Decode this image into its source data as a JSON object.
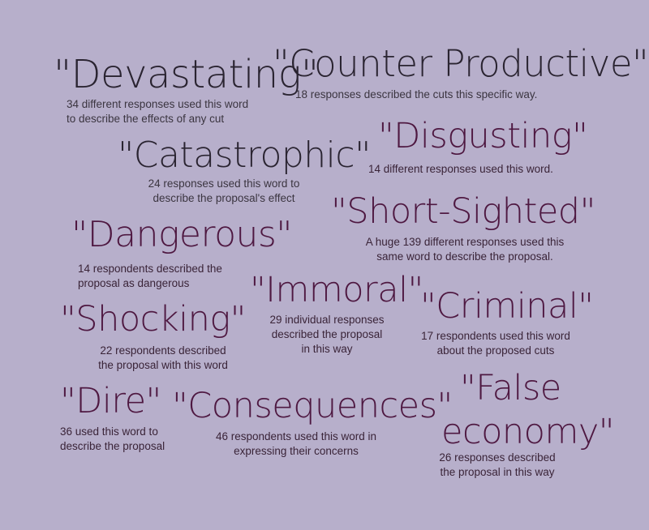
{
  "colors": {
    "background": "#b7afcb",
    "dark_text": "#2a2431",
    "plum_text": "#4e1841"
  },
  "entries": {
    "devastating": {
      "word": "\"Devastating\"",
      "note": "34 different responses used this word\nto describe the effects of any cut"
    },
    "counter_productive": {
      "word": "\"Counter Productive\"",
      "note": "18 responses described the cuts this specific way."
    },
    "catastrophic": {
      "word": "\"Catastrophic\"",
      "note": "24 responses used this word to\ndescribe the proposal's effect"
    },
    "disgusting": {
      "word": "\"Disgusting\"",
      "note": "14 different responses used this word."
    },
    "dangerous": {
      "word": "\"Dangerous\"",
      "note": "14 respondents described the\nproposal as dangerous"
    },
    "short_sighted": {
      "word": "\"Short-Sighted\"",
      "note": "A huge 139 different responses used this\nsame word to describe the proposal."
    },
    "immoral": {
      "word": "\"Immoral\"",
      "note": "29 individual responses\ndescribed the proposal\nin this way"
    },
    "criminal": {
      "word": "\"Criminal\"",
      "note": "17 respondents used this word\nabout the proposed cuts"
    },
    "shocking": {
      "word": "\"Shocking\"",
      "note": "22 respondents described\nthe proposal with this word"
    },
    "dire": {
      "word": "\"Dire\"",
      "note": "36 used this word to\ndescribe the proposal"
    },
    "consequences": {
      "word": "\"Consequences\"",
      "note": "46 respondents used this word in\nexpressing their concerns"
    },
    "false_economy": {
      "word_line1": "\"False",
      "word_line2": "economy\"",
      "note": "26 responses described\nthe proposal in this way"
    }
  }
}
